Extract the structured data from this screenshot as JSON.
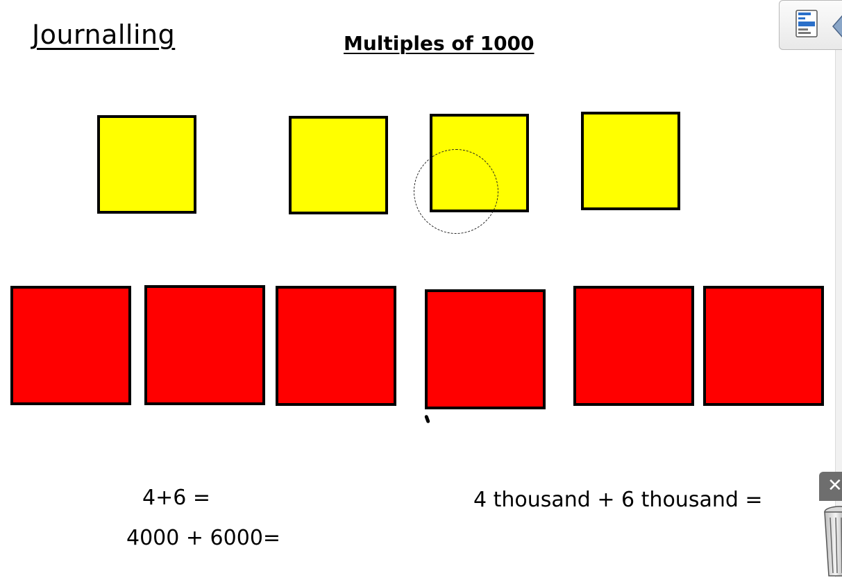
{
  "page": {
    "journal_title": "Journalling",
    "heading": "Multiples of 1000"
  },
  "blocks": {
    "thousand_blocks_color": "#ffff00",
    "thousand_blocks_count": 4,
    "added_blocks_color": "#ff0000",
    "added_blocks_count": 6
  },
  "equations": {
    "simple": "4+6 =",
    "numeric": "4000 + 6000=",
    "words": "4 thousand + 6 thousand ="
  },
  "toolbar": {
    "page_sorter_icon": "page-sorter-icon",
    "collapse_icon": "arrow-left-icon",
    "close_icon": "close-icon",
    "delete_icon": "recycle-bin-icon",
    "close_glyph": "✕"
  }
}
